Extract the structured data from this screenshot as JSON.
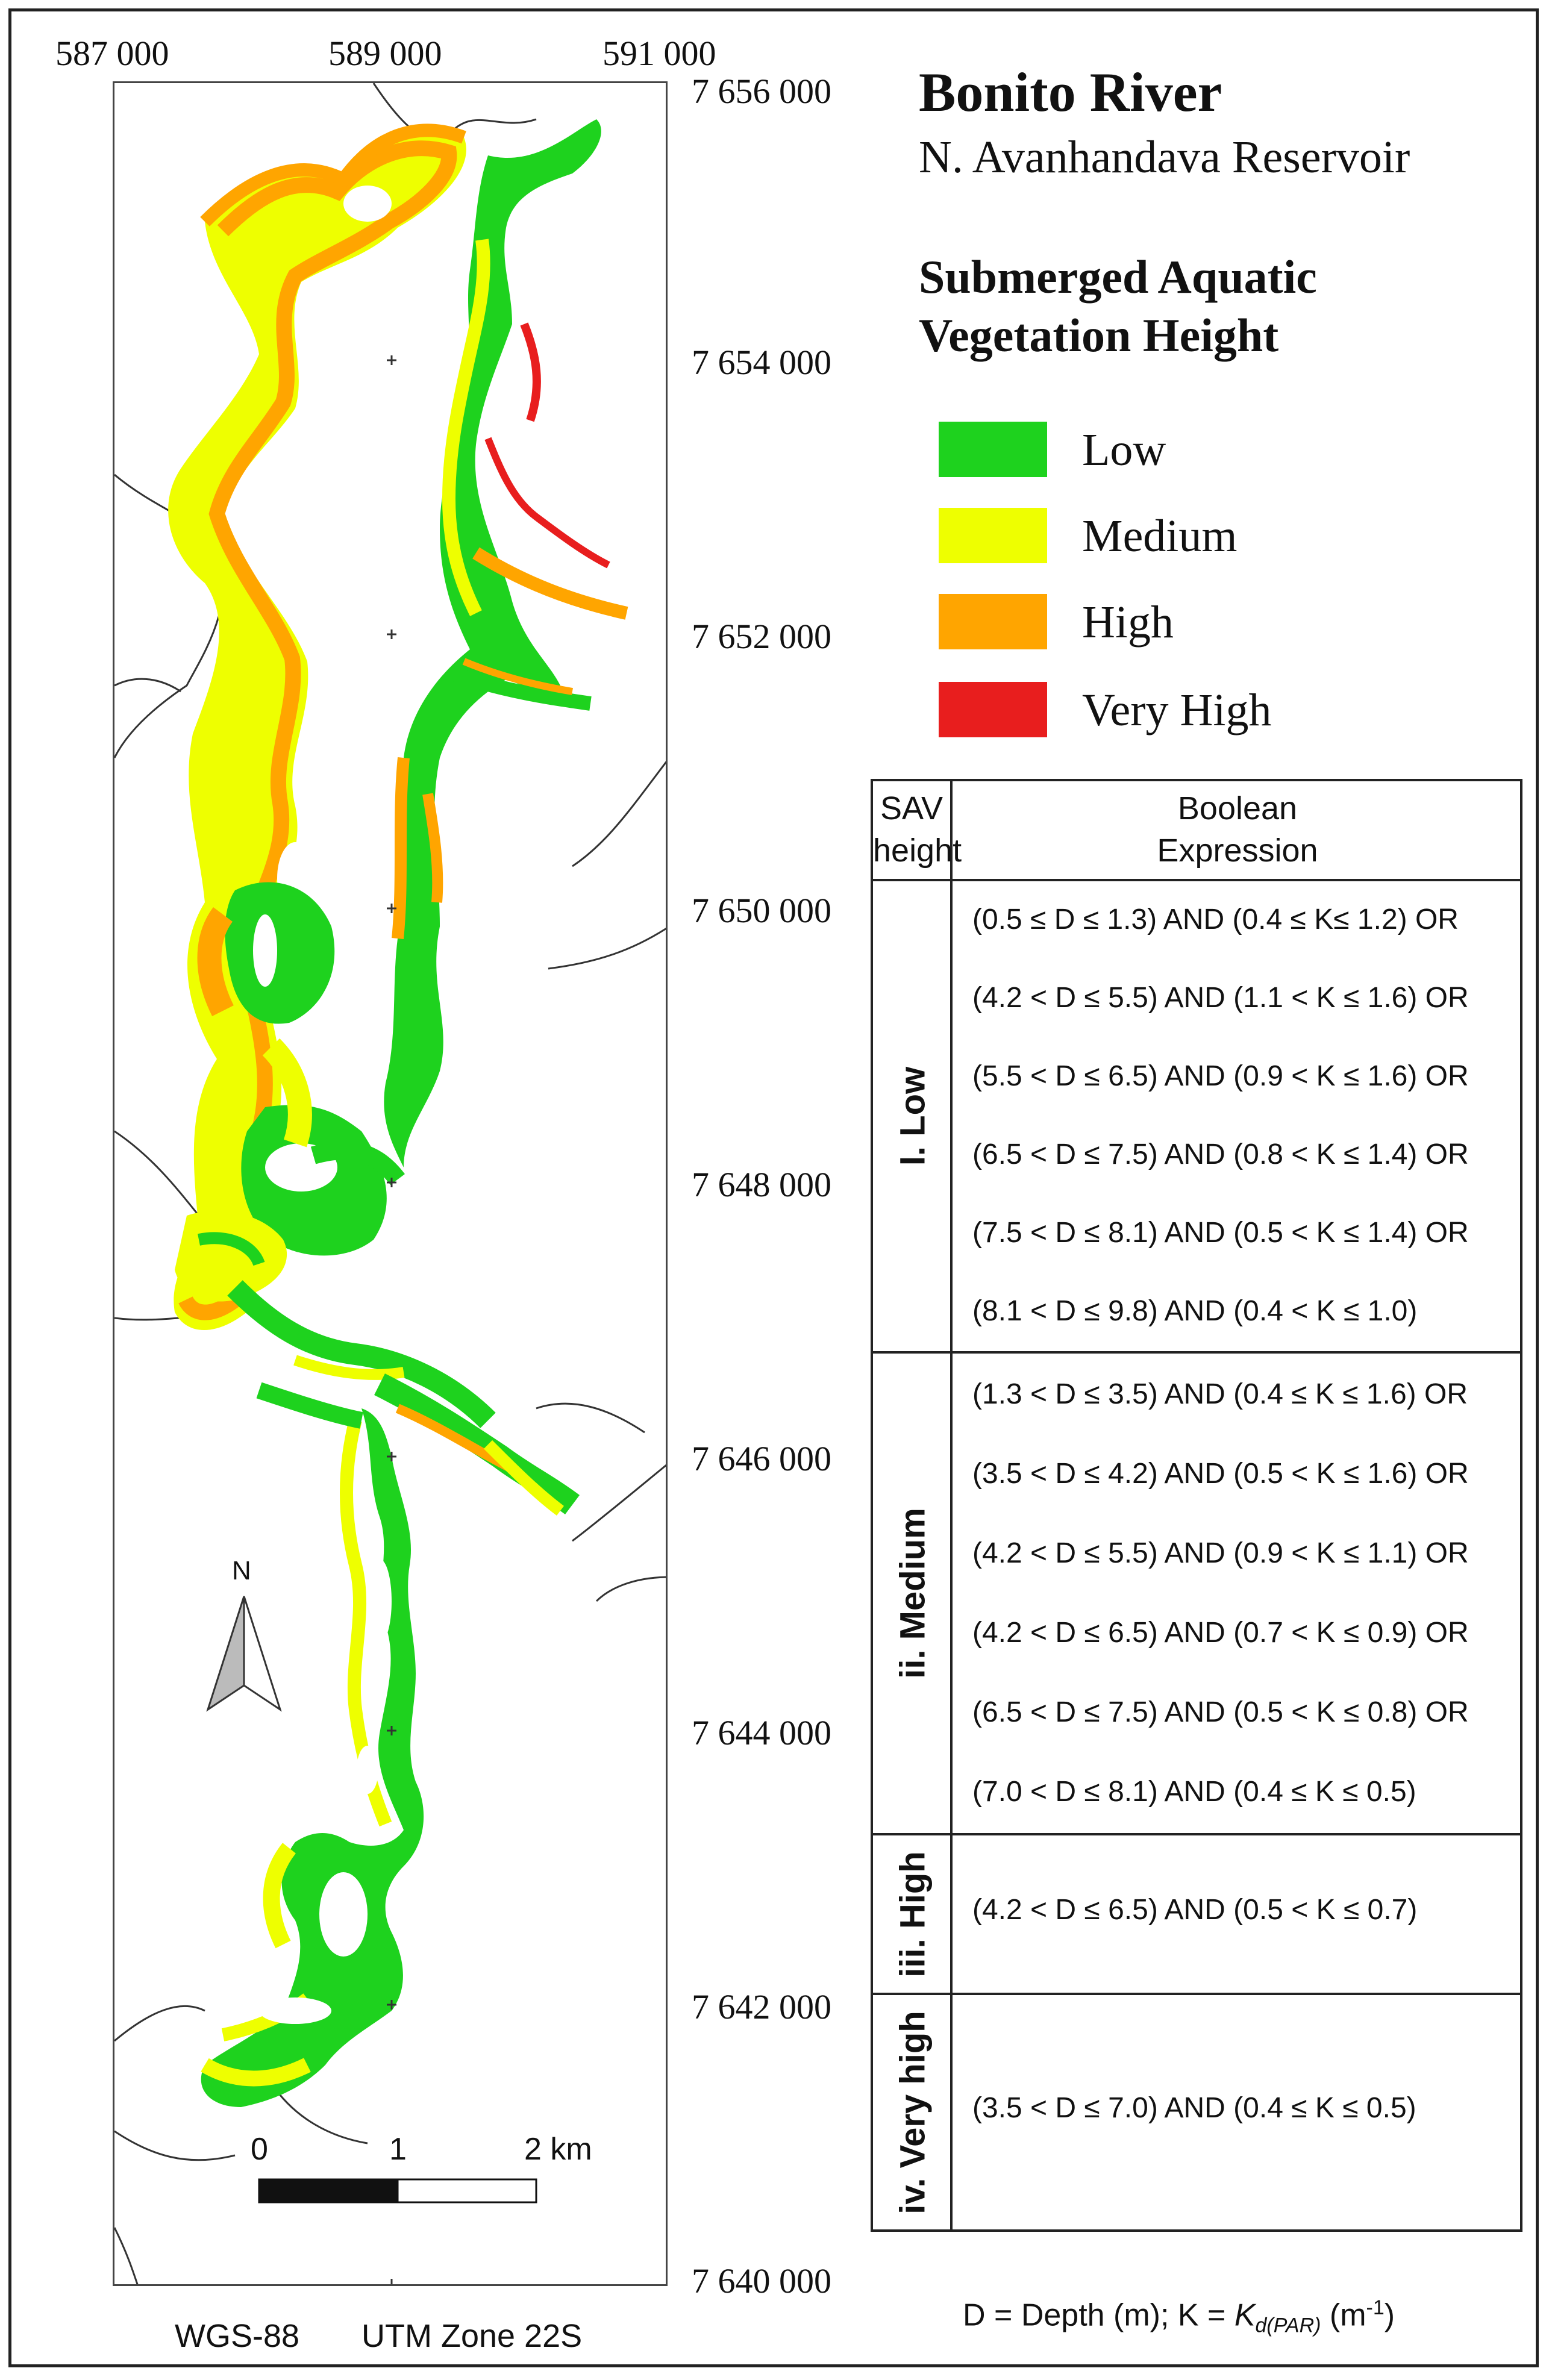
{
  "map": {
    "title": "Bonito River",
    "subtitle": "N. Avanhandava Reservoir",
    "x_ticks": [
      "587 000",
      "589 000",
      "591 000"
    ],
    "y_ticks": [
      "7 656 000",
      "7 654 000",
      "7 652 000",
      "7 650 000",
      "7 648 000",
      "7 646 000",
      "7 644 000",
      "7 642 000",
      "7 640 000"
    ],
    "datum": "WGS-88",
    "projection": "UTM Zone 22S",
    "north_label": "N",
    "scale_bar": {
      "labels": [
        "0",
        "1",
        "2 km"
      ]
    },
    "colors": {
      "low": "#1ed21e",
      "medium": "#eeff00",
      "high": "#ffa500",
      "very_high": "#e81e1e",
      "land_outline": "#333333"
    }
  },
  "legend": {
    "title_line1": "Submerged Aquatic",
    "title_line2": "Vegetation Height",
    "items": [
      {
        "label": "Low",
        "color": "#1ed21e"
      },
      {
        "label": "Medium",
        "color": "#eeff00"
      },
      {
        "label": "High",
        "color": "#ffa500"
      },
      {
        "label": "Very High",
        "color": "#e81e1e"
      }
    ]
  },
  "table": {
    "header_col1": [
      "SAV",
      "height"
    ],
    "header_col2": [
      "Boolean",
      "Expression"
    ],
    "groups": [
      {
        "label": "I. Low",
        "expressions": [
          "(0.5 ≤ D ≤ 1.3) AND  (0.4 ≤ K≤ 1.2) OR",
          "(4.2 < D ≤ 5.5) AND  (1.1 < K ≤ 1.6) OR",
          "(5.5 < D ≤ 6.5) AND  (0.9 < K ≤ 1.6) OR",
          "(6.5 < D ≤ 7.5) AND  (0.8 < K ≤ 1.4) OR",
          "(7.5 < D ≤ 8.1) AND  (0.5 < K ≤ 1.4) OR",
          "(8.1 < D ≤ 9.8) AND     (0.4 < K ≤ 1.0)"
        ]
      },
      {
        "label": "ii. Medium",
        "expressions": [
          "(1.3 < D ≤ 3.5) AND  (0.4 ≤ K ≤ 1.6) OR",
          "(3.5 < D ≤ 4.2) AND  (0.5 < K ≤ 1.6) OR",
          "(4.2 < D ≤ 5.5) AND  (0.9 < K ≤ 1.1) OR",
          "(4.2 < D ≤ 6.5) AND  (0.7 < K ≤ 0.9) OR",
          "(6.5 < D ≤ 7.5) AND  (0.5 < K ≤ 0.8) OR",
          "(7.0 < D ≤ 8.1) AND     (0.4 ≤ K ≤ 0.5)"
        ]
      },
      {
        "label": "iii. High",
        "expressions": [
          "(4.2 < D ≤ 6.5) AND     (0.5 < K ≤ 0.7)"
        ]
      },
      {
        "label": "iv. Very high",
        "expressions": [
          "(3.5 < D ≤ 7.0) AND     (0.4 ≤ K ≤ 0.5)"
        ]
      }
    ]
  },
  "footnote": {
    "prefix": "D = Depth  (m); K = ",
    "k_symbol": "K",
    "k_subscript": "d(PAR)",
    "unit": " (m",
    "unit_exp": "-1",
    "unit_close": ")"
  }
}
